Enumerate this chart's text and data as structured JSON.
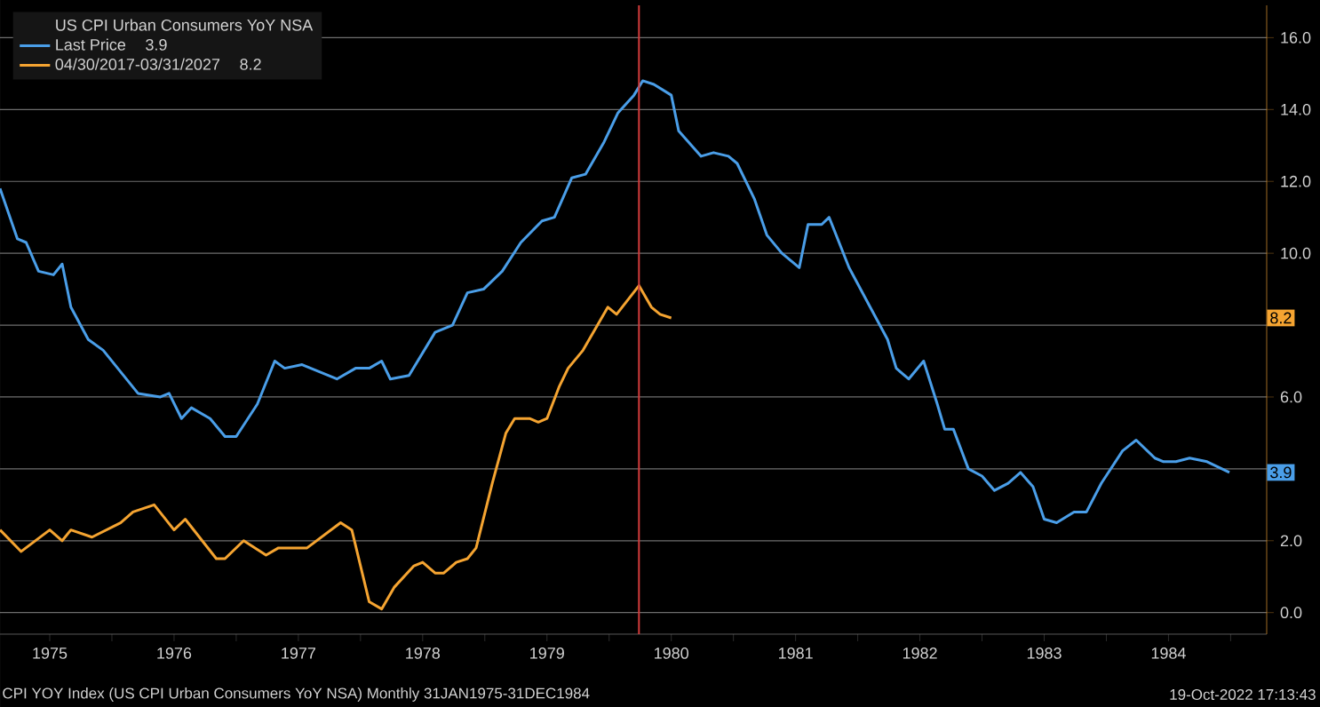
{
  "chart_data": {
    "type": "line",
    "legend_title": "US CPI Urban Consumers YoY NSA",
    "series": [
      {
        "name": "Last Price",
        "color": "#4a9ee8",
        "x": [
          1975.1,
          1975.24,
          1975.31,
          1975.41,
          1975.53,
          1975.6,
          1975.67,
          1975.81,
          1975.93,
          1976.07,
          1976.21,
          1976.39,
          1976.46,
          1976.56,
          1976.64,
          1976.79,
          1976.91,
          1977.0,
          1977.17,
          1977.31,
          1977.39,
          1977.53,
          1977.67,
          1977.81,
          1977.96,
          1978.07,
          1978.17,
          1978.24,
          1978.39,
          1978.6,
          1978.74,
          1978.86,
          1978.99,
          1979.14,
          1979.29,
          1979.46,
          1979.56,
          1979.7,
          1979.81,
          1979.96,
          1980.07,
          1980.2,
          1980.27,
          1980.36,
          1980.5,
          1980.56,
          1980.74,
          1980.84,
          1980.96,
          1981.03,
          1981.17,
          1981.27,
          1981.39,
          1981.53,
          1981.6,
          1981.71,
          1981.77,
          1981.93,
          1982.1,
          1982.24,
          1982.31,
          1982.41,
          1982.53,
          1982.64,
          1982.7,
          1982.77,
          1982.89,
          1983.0,
          1983.1,
          1983.21,
          1983.31,
          1983.41,
          1983.5,
          1983.6,
          1983.74,
          1983.84,
          1983.96,
          1984.13,
          1984.24,
          1984.39,
          1984.46,
          1984.56,
          1984.67,
          1984.81,
          1984.99
        ],
        "values": [
          11.8,
          10.4,
          10.3,
          9.5,
          9.4,
          9.7,
          8.5,
          7.6,
          7.3,
          6.7,
          6.1,
          6.0,
          6.1,
          5.4,
          5.7,
          5.4,
          4.9,
          4.9,
          5.8,
          7.0,
          6.8,
          6.9,
          6.7,
          6.5,
          6.8,
          6.8,
          7.0,
          6.5,
          6.6,
          7.8,
          8.0,
          8.9,
          9.0,
          9.5,
          10.3,
          10.9,
          11.0,
          12.1,
          12.2,
          13.1,
          13.9,
          14.4,
          14.8,
          14.7,
          14.4,
          13.4,
          12.7,
          12.8,
          12.7,
          12.5,
          11.5,
          10.5,
          10.0,
          9.6,
          10.8,
          10.8,
          11.0,
          9.6,
          8.5,
          7.6,
          6.8,
          6.5,
          7.0,
          5.8,
          5.1,
          5.1,
          4.0,
          3.8,
          3.4,
          3.6,
          3.9,
          3.5,
          2.6,
          2.5,
          2.8,
          2.8,
          3.6,
          4.5,
          4.8,
          4.3,
          4.2,
          4.2,
          4.3,
          4.2,
          3.9
        ]
      },
      {
        "name": "04/30/2017-03/31/2027",
        "color": "#f5a431",
        "x": [
          1975.1,
          1975.27,
          1975.5,
          1975.6,
          1975.67,
          1975.84,
          1976.07,
          1976.17,
          1976.34,
          1976.5,
          1976.59,
          1976.84,
          1976.91,
          1977.06,
          1977.24,
          1977.34,
          1977.57,
          1977.84,
          1977.93,
          1978.07,
          1978.17,
          1978.27,
          1978.43,
          1978.5,
          1978.6,
          1978.67,
          1978.77,
          1978.86,
          1978.93,
          1979.06,
          1979.17,
          1979.24,
          1979.36,
          1979.43,
          1979.5,
          1979.6,
          1979.67,
          1979.79,
          1979.99,
          1980.06,
          1980.24,
          1980.34,
          1980.41,
          1980.5
        ],
        "values": [
          2.3,
          1.7,
          2.3,
          2.0,
          2.3,
          2.1,
          2.5,
          2.8,
          3.0,
          2.3,
          2.6,
          1.5,
          1.5,
          2.0,
          1.6,
          1.8,
          1.8,
          2.5,
          2.3,
          0.3,
          0.1,
          0.7,
          1.3,
          1.4,
          1.1,
          1.1,
          1.4,
          1.5,
          1.8,
          3.6,
          5.0,
          5.4,
          5.4,
          5.3,
          5.4,
          6.3,
          6.8,
          7.3,
          8.5,
          8.3,
          9.1,
          8.5,
          8.3,
          8.2
        ]
      }
    ],
    "xlim": [
      1975.1,
      1985.29
    ],
    "xticks": [
      {
        "value": 1975.5,
        "label": "1975"
      },
      {
        "value": 1976.5,
        "label": "1976"
      },
      {
        "value": 1977.5,
        "label": "1977"
      },
      {
        "value": 1978.5,
        "label": "1978"
      },
      {
        "value": 1979.5,
        "label": "1979"
      },
      {
        "value": 1980.5,
        "label": "1980"
      },
      {
        "value": 1981.5,
        "label": "1981"
      },
      {
        "value": 1982.5,
        "label": "1982"
      },
      {
        "value": 1983.5,
        "label": "1983"
      },
      {
        "value": 1984.5,
        "label": "1984"
      },
      {
        "value": 1976,
        "label": null
      },
      {
        "value": 1977,
        "label": null
      },
      {
        "value": 1978,
        "label": null
      },
      {
        "value": 1979,
        "label": null
      },
      {
        "value": 1980,
        "label": null
      },
      {
        "value": 1981,
        "label": null
      },
      {
        "value": 1982,
        "label": null
      },
      {
        "value": 1983,
        "label": null
      },
      {
        "value": 1984,
        "label": null
      },
      {
        "value": 1985,
        "label": null
      }
    ],
    "ylim": [
      -0.6,
      16.9
    ],
    "yticks": [
      {
        "value": 0,
        "label": "0.0"
      },
      {
        "value": 2,
        "label": "2.0"
      },
      {
        "value": 4,
        "label": null
      },
      {
        "value": 6,
        "label": "6.0"
      },
      {
        "value": 8,
        "label": null
      },
      {
        "value": 10,
        "label": "10.0"
      },
      {
        "value": 12,
        "label": "12.0"
      },
      {
        "value": 14,
        "label": "14.0"
      },
      {
        "value": 16,
        "label": "16.0"
      }
    ],
    "ref_lines": [
      {
        "axis": "x",
        "value": 1980.24,
        "color": "#d23c3c"
      }
    ],
    "annotations": [
      "3.9",
      "8.2",
      "3.9",
      "8.2",
      "CPI YOY Index (US CPI Urban Consumers YoY NSA)  Monthly 31JAN1975-31DEC1984",
      "19-Oct-2022 17:13:43"
    ],
    "grid": "y",
    "legend": "top left"
  }
}
